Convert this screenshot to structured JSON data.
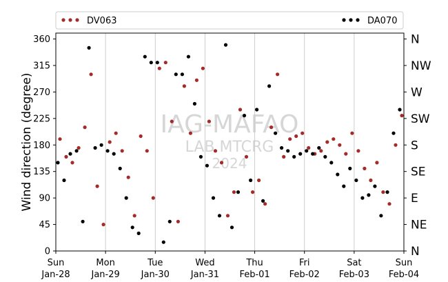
{
  "chart_data": {
    "type": "scatter",
    "title": "",
    "xlabel": "",
    "ylabel": "Wind direction (degree)",
    "ylim": [
      0,
      370
    ],
    "yticks": [
      0,
      45,
      90,
      135,
      180,
      225,
      270,
      315,
      360
    ],
    "right_axis_labels": [
      "N",
      "NE",
      "E",
      "SE",
      "S",
      "SW",
      "W",
      "NW",
      "N"
    ],
    "xlim": [
      "2024-01-28 00:00",
      "2024-02-04 00:00"
    ],
    "xtick_labels": [
      {
        "day": "Sun",
        "date": "Jan-28"
      },
      {
        "day": "Mon",
        "date": "Jan-29"
      },
      {
        "day": "Tue",
        "date": "Jan-30"
      },
      {
        "day": "Wed",
        "date": "Jan-31"
      },
      {
        "day": "Thu",
        "date": "Feb-01"
      },
      {
        "day": "Fri",
        "date": "Feb-02"
      },
      {
        "day": "Sat",
        "date": "Feb-03"
      },
      {
        "day": "Sun",
        "date": "Feb-04"
      }
    ],
    "grid": "vertical",
    "legend_placement": "top",
    "watermark": [
      "IAG-MAFAO",
      "LAB MTCRG",
      "2024"
    ],
    "series": [
      {
        "name": "DV063",
        "color": "#a52a2a",
        "x": [
          "2024-01-28 02:00",
          "2024-01-28 05:00",
          "2024-01-28 08:00",
          "2024-01-28 11:00",
          "2024-01-28 14:00",
          "2024-01-28 17:00",
          "2024-01-28 20:00",
          "2024-01-28 23:00",
          "2024-01-29 02:00",
          "2024-01-29 05:00",
          "2024-01-29 08:00",
          "2024-01-29 11:00",
          "2024-01-29 14:00",
          "2024-01-29 17:00",
          "2024-01-29 20:00",
          "2024-01-29 23:00",
          "2024-01-30 02:00",
          "2024-01-30 05:00",
          "2024-01-30 08:00",
          "2024-01-30 11:00",
          "2024-01-30 14:00",
          "2024-01-30 17:00",
          "2024-01-30 20:00",
          "2024-01-30 23:00",
          "2024-01-31 02:00",
          "2024-01-31 05:00",
          "2024-01-31 08:00",
          "2024-01-31 11:00",
          "2024-01-31 14:00",
          "2024-01-31 17:00",
          "2024-01-31 20:00",
          "2024-01-31 23:00",
          "2024-02-01 02:00",
          "2024-02-01 05:00",
          "2024-02-01 08:00",
          "2024-02-01 11:00",
          "2024-02-01 14:00",
          "2024-02-01 17:00",
          "2024-02-01 20:00",
          "2024-02-01 23:00",
          "2024-02-02 02:00",
          "2024-02-02 05:00",
          "2024-02-02 08:00",
          "2024-02-02 11:00",
          "2024-02-02 14:00",
          "2024-02-02 17:00",
          "2024-02-02 20:00",
          "2024-02-02 23:00",
          "2024-02-03 02:00",
          "2024-02-03 05:00",
          "2024-02-03 08:00",
          "2024-02-03 11:00",
          "2024-02-03 14:00",
          "2024-02-03 17:00",
          "2024-02-03 20:00",
          "2024-02-03 23:00"
        ],
        "y": [
          190,
          160,
          150,
          175,
          210,
          300,
          110,
          45,
          185,
          200,
          170,
          125,
          60,
          195,
          170,
          90,
          310,
          320,
          220,
          50,
          280,
          200,
          290,
          310,
          220,
          170,
          150,
          60,
          100,
          240,
          160,
          100,
          120,
          80,
          210,
          300,
          160,
          190,
          195,
          200,
          175,
          165,
          170,
          185,
          190,
          180,
          165,
          200,
          170,
          140,
          120,
          150,
          100,
          80,
          180,
          230
        ]
      },
      {
        "name": "DA070",
        "color": "#000000",
        "x": [
          "2024-01-28 01:00",
          "2024-01-28 04:00",
          "2024-01-28 07:00",
          "2024-01-28 10:00",
          "2024-01-28 13:00",
          "2024-01-28 16:00",
          "2024-01-28 19:00",
          "2024-01-28 22:00",
          "2024-01-29 01:00",
          "2024-01-29 04:00",
          "2024-01-29 07:00",
          "2024-01-29 10:00",
          "2024-01-29 13:00",
          "2024-01-29 16:00",
          "2024-01-29 19:00",
          "2024-01-29 22:00",
          "2024-01-30 01:00",
          "2024-01-30 04:00",
          "2024-01-30 07:00",
          "2024-01-30 10:00",
          "2024-01-30 13:00",
          "2024-01-30 16:00",
          "2024-01-30 19:00",
          "2024-01-30 22:00",
          "2024-01-31 01:00",
          "2024-01-31 04:00",
          "2024-01-31 07:00",
          "2024-01-31 10:00",
          "2024-01-31 13:00",
          "2024-01-31 16:00",
          "2024-01-31 19:00",
          "2024-01-31 22:00",
          "2024-02-01 01:00",
          "2024-02-01 04:00",
          "2024-02-01 07:00",
          "2024-02-01 10:00",
          "2024-02-01 13:00",
          "2024-02-01 16:00",
          "2024-02-01 19:00",
          "2024-02-01 22:00",
          "2024-02-02 01:00",
          "2024-02-02 04:00",
          "2024-02-02 07:00",
          "2024-02-02 10:00",
          "2024-02-02 13:00",
          "2024-02-02 16:00",
          "2024-02-02 19:00",
          "2024-02-02 22:00",
          "2024-02-03 01:00",
          "2024-02-03 04:00",
          "2024-02-03 07:00",
          "2024-02-03 10:00",
          "2024-02-03 13:00",
          "2024-02-03 16:00",
          "2024-02-03 19:00",
          "2024-02-03 22:00"
        ],
        "y": [
          150,
          120,
          165,
          170,
          50,
          345,
          175,
          180,
          170,
          165,
          140,
          90,
          40,
          30,
          330,
          320,
          320,
          15,
          50,
          300,
          300,
          330,
          250,
          160,
          145,
          90,
          60,
          350,
          40,
          100,
          230,
          120,
          240,
          85,
          280,
          200,
          175,
          170,
          160,
          165,
          170,
          165,
          175,
          160,
          150,
          130,
          110,
          140,
          120,
          90,
          95,
          110,
          60,
          100,
          200,
          240
        ]
      }
    ]
  }
}
